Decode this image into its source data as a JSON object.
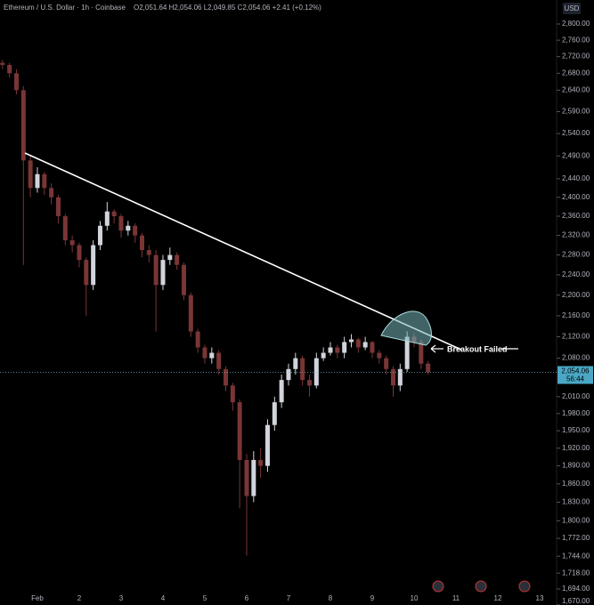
{
  "chart_data": {
    "type": "candlestick",
    "title": "Ethereum / U.S. Dollar · 1h · Coinbase",
    "ohlc_header": "O2,051.64 H2,054.06 L2,049.85 C2,054.06 +2.41 (+0.12%)",
    "currency": "USD",
    "last_price_label": "2,054.06",
    "countdown": "56:44",
    "annotation": "Breakout Failed",
    "log_scale": true,
    "up_color": "#d1d4dc",
    "down_color": "#7a3535",
    "categories": [
      null,
      null,
      null,
      null,
      null,
      "Feb",
      null,
      null,
      null,
      null,
      null,
      "2",
      null,
      null,
      null,
      null,
      null,
      "3",
      null,
      null,
      null,
      null,
      null,
      "4",
      null,
      null,
      null,
      null,
      null,
      "5",
      null,
      null,
      null,
      null,
      null,
      "6",
      null,
      null,
      null,
      null,
      null,
      "7",
      null,
      null,
      null,
      null,
      null,
      "8",
      null,
      null,
      null,
      null,
      null,
      "9",
      null,
      null,
      null,
      null,
      null,
      "10",
      null,
      null,
      null,
      null,
      null,
      "11",
      null,
      null,
      null,
      null,
      null,
      "12",
      null,
      null,
      null,
      null,
      null,
      "13"
    ],
    "open": [
      2705,
      2700,
      2680,
      2640,
      2480,
      2420,
      2450,
      2420,
      2400,
      2360,
      2310,
      2300,
      2270,
      2220,
      2300,
      2340,
      2370,
      2360,
      2330,
      2340,
      2320,
      2290,
      2280,
      2220,
      2270,
      2280,
      2260,
      2200,
      2130,
      2100,
      2080,
      2090,
      2060,
      2030,
      2000,
      1900,
      1840,
      1900,
      1890,
      1960,
      2000,
      2040,
      2060,
      2080,
      2040,
      2030,
      2080,
      2090,
      2100,
      2090,
      2110,
      2115,
      2100,
      2110,
      2090,
      2080,
      2060,
      2030,
      2060,
      2120,
      2110,
      2070,
      null,
      null,
      null,
      null,
      null,
      null,
      null,
      null,
      null,
      null,
      null,
      null,
      null,
      null,
      null,
      null
    ],
    "high": [
      2712,
      2705,
      2690,
      2650,
      2490,
      2465,
      2455,
      2430,
      2405,
      2365,
      2320,
      2305,
      2275,
      2310,
      2350,
      2390,
      2375,
      2365,
      2350,
      2345,
      2325,
      2300,
      2290,
      2280,
      2295,
      2285,
      2265,
      2205,
      2135,
      2105,
      2100,
      2095,
      2065,
      2035,
      2005,
      1910,
      1915,
      1920,
      1970,
      2010,
      2050,
      2070,
      2090,
      2085,
      2050,
      2090,
      2100,
      2110,
      2105,
      2120,
      2125,
      2118,
      2120,
      2112,
      2095,
      2085,
      2065,
      2070,
      2130,
      2128,
      2115,
      2075,
      null,
      null,
      null,
      null,
      null,
      null,
      null,
      null,
      null,
      null,
      null,
      null,
      null,
      null,
      null,
      null
    ],
    "low": [
      2690,
      2670,
      2630,
      2260,
      2400,
      2410,
      2405,
      2385,
      2345,
      2300,
      2285,
      2255,
      2160,
      2210,
      2290,
      2330,
      2345,
      2315,
      2320,
      2305,
      2275,
      2265,
      2130,
      2210,
      2260,
      2250,
      2190,
      2120,
      2090,
      2070,
      2070,
      2050,
      2020,
      1985,
      1820,
      1745,
      1830,
      1870,
      1880,
      1950,
      1990,
      2030,
      2050,
      2030,
      2010,
      2025,
      2075,
      2085,
      2080,
      2080,
      2100,
      2090,
      2095,
      2080,
      2070,
      2050,
      2010,
      2020,
      2055,
      2100,
      2060,
      2050,
      null,
      null,
      null,
      null,
      null,
      null,
      null,
      null,
      null,
      null,
      null,
      null,
      null,
      null,
      null,
      null
    ],
    "close": [
      2700,
      2680,
      2640,
      2480,
      2420,
      2450,
      2420,
      2400,
      2360,
      2310,
      2300,
      2270,
      2220,
      2300,
      2340,
      2370,
      2360,
      2330,
      2340,
      2320,
      2290,
      2280,
      2220,
      2270,
      2280,
      2260,
      2200,
      2130,
      2100,
      2080,
      2090,
      2060,
      2030,
      2000,
      1900,
      1840,
      1900,
      1890,
      1960,
      2000,
      2040,
      2060,
      2080,
      2040,
      2030,
      2080,
      2090,
      2100,
      2090,
      2110,
      2115,
      2100,
      2110,
      2090,
      2080,
      2060,
      2030,
      2060,
      2120,
      2110,
      2070,
      2054,
      null,
      null,
      null,
      null,
      null,
      null,
      null,
      null,
      null,
      null,
      null,
      null,
      null,
      null,
      null,
      null
    ],
    "ylim": [
      1670,
      2820
    ],
    "yticks": [
      {
        "value": 2800,
        "label": "2,800.00"
      },
      {
        "value": 2760,
        "label": "2,760.00"
      },
      {
        "value": 2720,
        "label": "2,720.00"
      },
      {
        "value": 2680,
        "label": "2,680.00"
      },
      {
        "value": 2640,
        "label": "2,640.00"
      },
      {
        "value": 2590,
        "label": "2,590.00"
      },
      {
        "value": 2540,
        "label": "2,540.00"
      },
      {
        "value": 2490,
        "label": "2,490.00"
      },
      {
        "value": 2440,
        "label": "2,440.00"
      },
      {
        "value": 2400,
        "label": "2,400.00"
      },
      {
        "value": 2360,
        "label": "2,360.00"
      },
      {
        "value": 2320,
        "label": "2,320.00"
      },
      {
        "value": 2280,
        "label": "2,280.00"
      },
      {
        "value": 2240,
        "label": "2,240.00"
      },
      {
        "value": 2200,
        "label": "2,200.00"
      },
      {
        "value": 2160,
        "label": "2,160.00"
      },
      {
        "value": 2120,
        "label": "2,120.00"
      },
      {
        "value": 2080,
        "label": "2,080.00"
      },
      {
        "value": 2010,
        "label": "2,010.00"
      },
      {
        "value": 1980,
        "label": "1,980.00"
      },
      {
        "value": 1950,
        "label": "1,950.00"
      },
      {
        "value": 1920,
        "label": "1,920.00"
      },
      {
        "value": 1890,
        "label": "1,890.00"
      },
      {
        "value": 1860,
        "label": "1,860.00"
      },
      {
        "value": 1830,
        "label": "1,830.00"
      },
      {
        "value": 1800,
        "label": "1,800.00"
      },
      {
        "value": 1772,
        "label": "1,772.00"
      },
      {
        "value": 1744,
        "label": "1,744.00"
      },
      {
        "value": 1718,
        "label": "1,718.00"
      },
      {
        "value": 1694,
        "label": "1,694.00"
      },
      {
        "value": 1670,
        "label": "1,670.00"
      }
    ]
  }
}
